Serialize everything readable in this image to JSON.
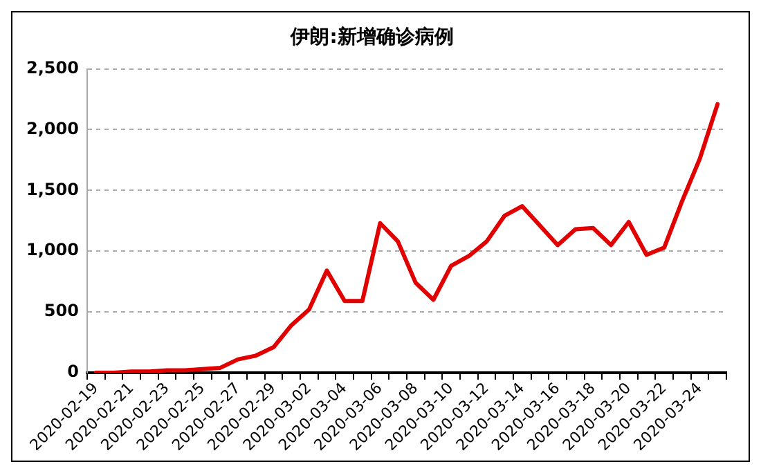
{
  "chart_data": {
    "type": "line",
    "title": "伊朗:新增确诊病例",
    "categories": [
      "2020-02-19",
      null,
      "2020-02-21",
      null,
      "2020-02-23",
      null,
      "2020-02-25",
      null,
      "2020-02-27",
      null,
      "2020-02-29",
      null,
      "2020-03-02",
      null,
      "2020-03-04",
      null,
      "2020-03-06",
      null,
      "2020-03-08",
      null,
      "2020-03-10",
      null,
      "2020-03-12",
      null,
      "2020-03-14",
      null,
      "2020-03-16",
      null,
      "2020-03-18",
      null,
      "2020-03-20",
      null,
      "2020-03-22",
      null,
      "2020-03-24",
      null
    ],
    "series": [
      {
        "color": "#e00000",
        "values": [
          0,
          0,
          10,
          10,
          20,
          20,
          30,
          40,
          110,
          140,
          210,
          390,
          520,
          840,
          590,
          590,
          1230,
          1080,
          740,
          600,
          880,
          960,
          1080,
          1290,
          1370,
          1210,
          1050,
          1180,
          1190,
          1050,
          1240,
          970,
          1030,
          1410,
          1760,
          2210
        ]
      }
    ],
    "ylim": [
      0,
      2500
    ],
    "yticks": [
      {
        "value": 0,
        "label": "0"
      },
      {
        "value": 500,
        "label": "500"
      },
      {
        "value": 1000,
        "label": "1,000"
      },
      {
        "value": 1500,
        "label": "1,500"
      },
      {
        "value": 2000,
        "label": "2,000"
      },
      {
        "value": 2500,
        "label": "2,500"
      }
    ],
    "grid": "y",
    "legend": false,
    "marker": "none",
    "line_style": "solid"
  }
}
